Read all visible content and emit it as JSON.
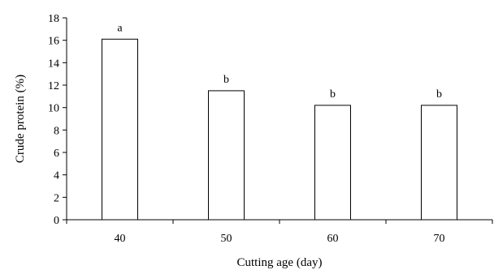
{
  "chart_data": {
    "type": "bar",
    "xlabel": "Cutting age (day)",
    "ylabel": "Crude protein (%)",
    "categories": [
      "40",
      "50",
      "60",
      "70"
    ],
    "values": [
      16.1,
      11.5,
      10.2,
      10.2
    ],
    "significance_labels": [
      "a",
      "b",
      "b",
      "b"
    ],
    "ylim": [
      0,
      18
    ],
    "yticks": [
      0,
      2,
      4,
      6,
      8,
      10,
      12,
      14,
      16,
      18
    ],
    "grid": false,
    "legend": "none",
    "bar_fill": "#ffffff",
    "bar_stroke": "#000000"
  }
}
